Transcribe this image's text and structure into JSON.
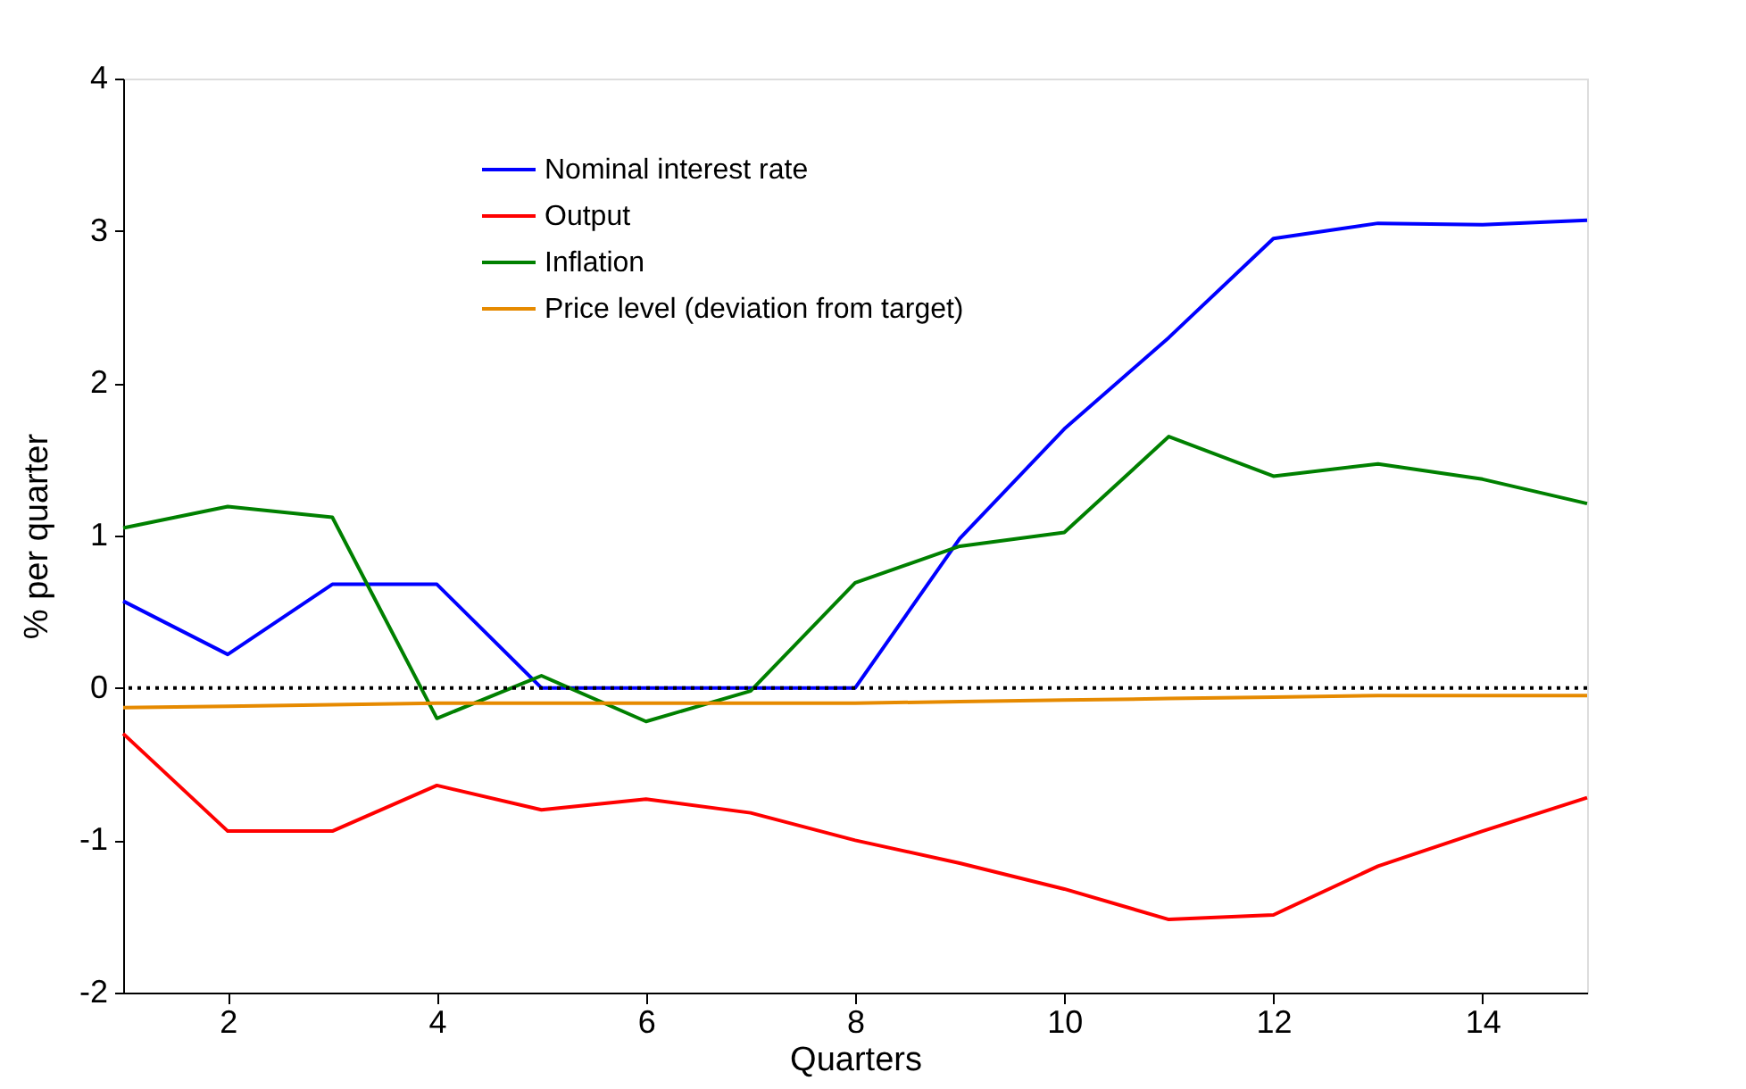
{
  "chart_data": {
    "type": "line",
    "xlabel": "Quarters",
    "ylabel": "% per quarter",
    "x": [
      1,
      2,
      3,
      4,
      5,
      6,
      7,
      8,
      9,
      10,
      11,
      12,
      13,
      14,
      15
    ],
    "series": [
      {
        "name": "Nominal interest rate",
        "color": "#0000ff",
        "values": [
          0.57,
          0.22,
          0.68,
          0.68,
          0,
          0,
          0,
          0,
          0.98,
          1.7,
          2.3,
          2.95,
          3.05,
          3.04,
          3.07
        ]
      },
      {
        "name": "Output",
        "color": "#ff0000",
        "values": [
          -0.3,
          -0.94,
          -0.94,
          -0.64,
          -0.8,
          -0.73,
          -0.82,
          -1.0,
          -1.15,
          -1.32,
          -1.52,
          -1.49,
          -1.17,
          -0.94,
          -0.72
        ]
      },
      {
        "name": "Inflation",
        "color": "#008000",
        "values": [
          1.05,
          1.19,
          1.12,
          -0.2,
          0.08,
          -0.22,
          -0.02,
          0.69,
          0.93,
          1.02,
          1.65,
          1.39,
          1.47,
          1.37,
          1.21
        ]
      },
      {
        "name": "Price level (deviation from target)",
        "color": "#e68a00",
        "values": [
          -0.13,
          -0.12,
          -0.11,
          -0.1,
          -0.1,
          -0.1,
          -0.1,
          -0.1,
          -0.09,
          -0.08,
          -0.07,
          -0.06,
          -0.05,
          -0.05,
          -0.05
        ]
      }
    ],
    "xlim": [
      1,
      15
    ],
    "xticks": [
      2,
      4,
      6,
      8,
      10,
      12,
      14
    ],
    "ylim": [
      -2,
      4
    ],
    "yticks": [
      -2,
      -1,
      0,
      1,
      2,
      3,
      4
    ],
    "ref_lines": [
      {
        "axis": "y",
        "value": 0,
        "color": "#000000",
        "line_style": "dotted"
      }
    ],
    "grid": false,
    "legend": "top left",
    "marker": "none",
    "line_style": "solid"
  }
}
